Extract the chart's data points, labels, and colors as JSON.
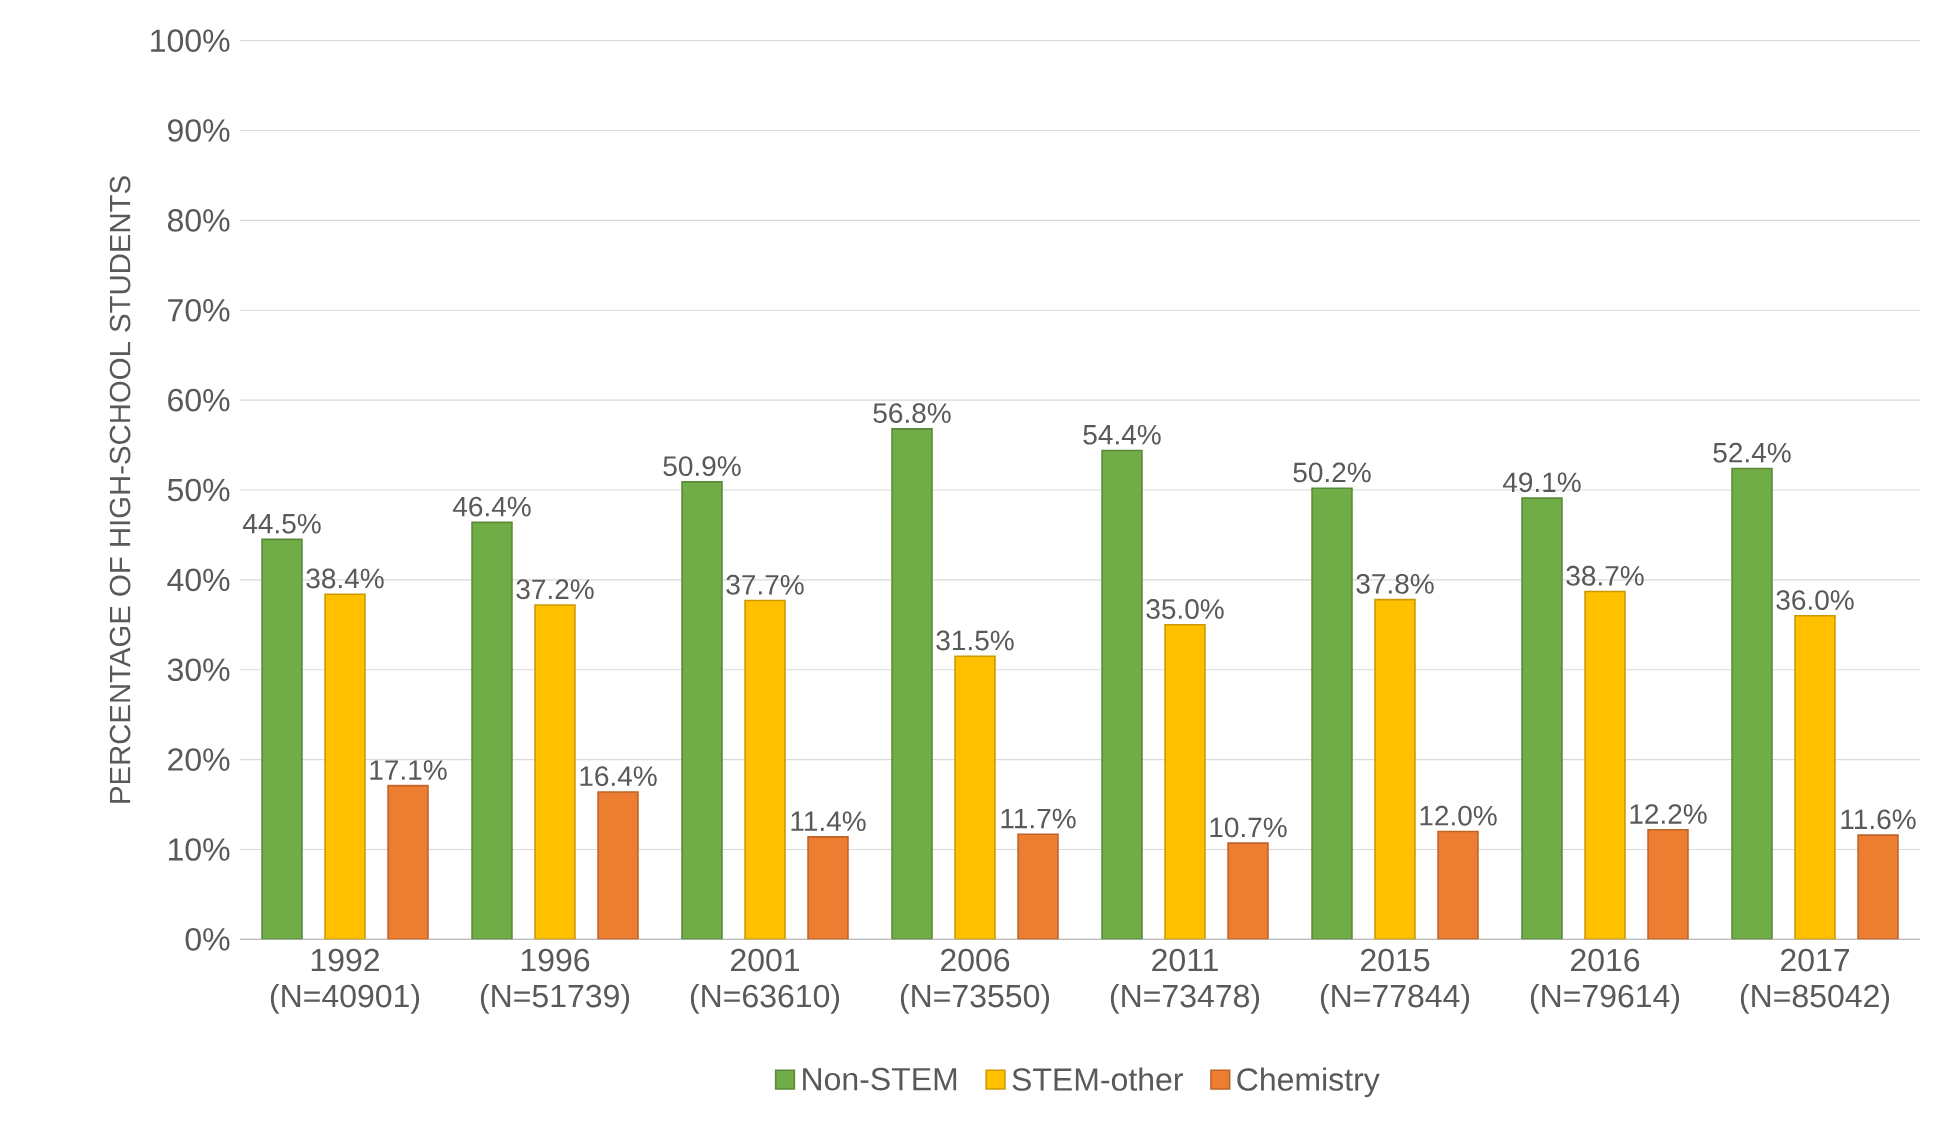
{
  "chart_data": {
    "type": "bar",
    "ylabel": "PERCENTAGE OF HIGH-SCHOOL STUDENTS",
    "categories": [
      "1992 (N=40901)",
      "1996 (N=51739)",
      "2001 (N=63610)",
      "2006 (N=73550)",
      "2011 (N=73478)",
      "2015 (N=77844)",
      "2016 (N=79614)",
      "2017 (N=85042)"
    ],
    "series": [
      {
        "name": "Non-STEM",
        "color": "#70ad47",
        "values": [
          44.5,
          46.4,
          50.9,
          56.8,
          54.4,
          50.2,
          49.1,
          52.4
        ],
        "value_labels": [
          "44.5%",
          "46.4%",
          "50.9%",
          "56.8%",
          "54.4%",
          "50.2%",
          "49.1%",
          "52.4%"
        ]
      },
      {
        "name": "STEM-other",
        "color": "#ffc000",
        "values": [
          38.4,
          37.2,
          37.7,
          31.5,
          35.0,
          37.8,
          38.7,
          36.0
        ],
        "value_labels": [
          "38.4%",
          "37.2%",
          "37.7%",
          "31.5%",
          "35.0%",
          "37.8%",
          "38.7%",
          "36.0%"
        ]
      },
      {
        "name": "Chemistry",
        "color": "#ed7d31",
        "values": [
          17.1,
          16.4,
          11.4,
          11.7,
          10.7,
          12.0,
          12.2,
          11.6
        ],
        "value_labels": [
          "17.1%",
          "16.4%",
          "11.4%",
          "11.7%",
          "10.7%",
          "12.0%",
          "12.2%",
          "11.6%"
        ]
      }
    ],
    "ylim": [
      0,
      100
    ],
    "yticks": [
      {
        "value": 0,
        "label": "0%"
      },
      {
        "value": 10,
        "label": "10%"
      },
      {
        "value": 20,
        "label": "20%"
      },
      {
        "value": 30,
        "label": "30%"
      },
      {
        "value": 40,
        "label": "40%"
      },
      {
        "value": 50,
        "label": "50%"
      },
      {
        "value": 60,
        "label": "60%"
      },
      {
        "value": 70,
        "label": "70%"
      },
      {
        "value": 80,
        "label": "80%"
      },
      {
        "value": 90,
        "label": "90%"
      },
      {
        "value": 100,
        "label": "100%"
      }
    ],
    "grid": "y",
    "legend": "bottom"
  }
}
